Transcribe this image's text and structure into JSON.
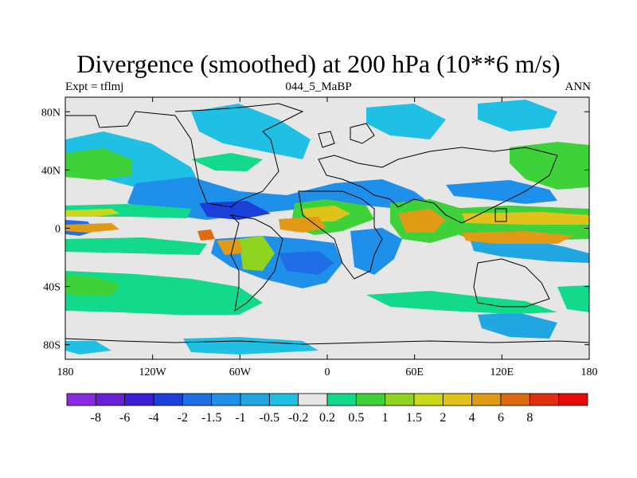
{
  "title": "Divergence (smoothed) at 200 hPa (10**6 m/s)",
  "subtitle_left": "Expt = tflmj",
  "subtitle_center": "044_5_MaBP",
  "subtitle_right": "ANN",
  "axes": {
    "lon_range": [
      -180,
      180
    ],
    "lat_range": [
      -90,
      90
    ],
    "x_ticks": [
      {
        "value": -180,
        "label": "180"
      },
      {
        "value": -120,
        "label": "120W"
      },
      {
        "value": -60,
        "label": "60W"
      },
      {
        "value": 0,
        "label": "0"
      },
      {
        "value": 60,
        "label": "60E"
      },
      {
        "value": 120,
        "label": "120E"
      },
      {
        "value": 180,
        "label": "180"
      }
    ],
    "y_ticks": [
      {
        "value": 80,
        "label": "80N"
      },
      {
        "value": 40,
        "label": "40N"
      },
      {
        "value": 0,
        "label": "0"
      },
      {
        "value": -40,
        "label": "40S"
      },
      {
        "value": -80,
        "label": "80S"
      }
    ]
  },
  "colorbar": {
    "colors": [
      "#8a2be2",
      "#6a1fd6",
      "#3c1fd9",
      "#1b3fdb",
      "#1e6fe6",
      "#1e90ea",
      "#21a6e0",
      "#1fc0e3",
      "#e6e6e6",
      "#13d98a",
      "#3fd13a",
      "#8fd41f",
      "#c8d81a",
      "#e0c21a",
      "#e09a16",
      "#e06a12",
      "#e0300f",
      "#e60a0a"
    ],
    "labels": [
      "-8",
      "-6",
      "-4",
      "-2",
      "-1.5",
      "-1",
      "-0.5",
      "-0.2",
      "0.2",
      "0.5",
      "1",
      "1.5",
      "2",
      "4",
      "6",
      "8"
    ]
  },
  "chart_data": {
    "type": "heatmap",
    "title": "Divergence (smoothed) at 200 hPa (10**6 m/s)",
    "variable": "Divergence (smoothed)",
    "level": "200 hPa",
    "units": "10**6 m/s",
    "experiment": "tflmj",
    "period": "044_5_MaBP",
    "season": "ANN",
    "contour_levels": [
      -8,
      -6,
      -4,
      -2,
      -1.5,
      -1,
      -0.5,
      -0.2,
      0.2,
      0.5,
      1,
      1.5,
      2,
      4,
      6,
      8
    ],
    "x_range": [
      -180,
      180
    ],
    "y_range": [
      -90,
      90
    ],
    "xlabel": "",
    "ylabel": ""
  }
}
